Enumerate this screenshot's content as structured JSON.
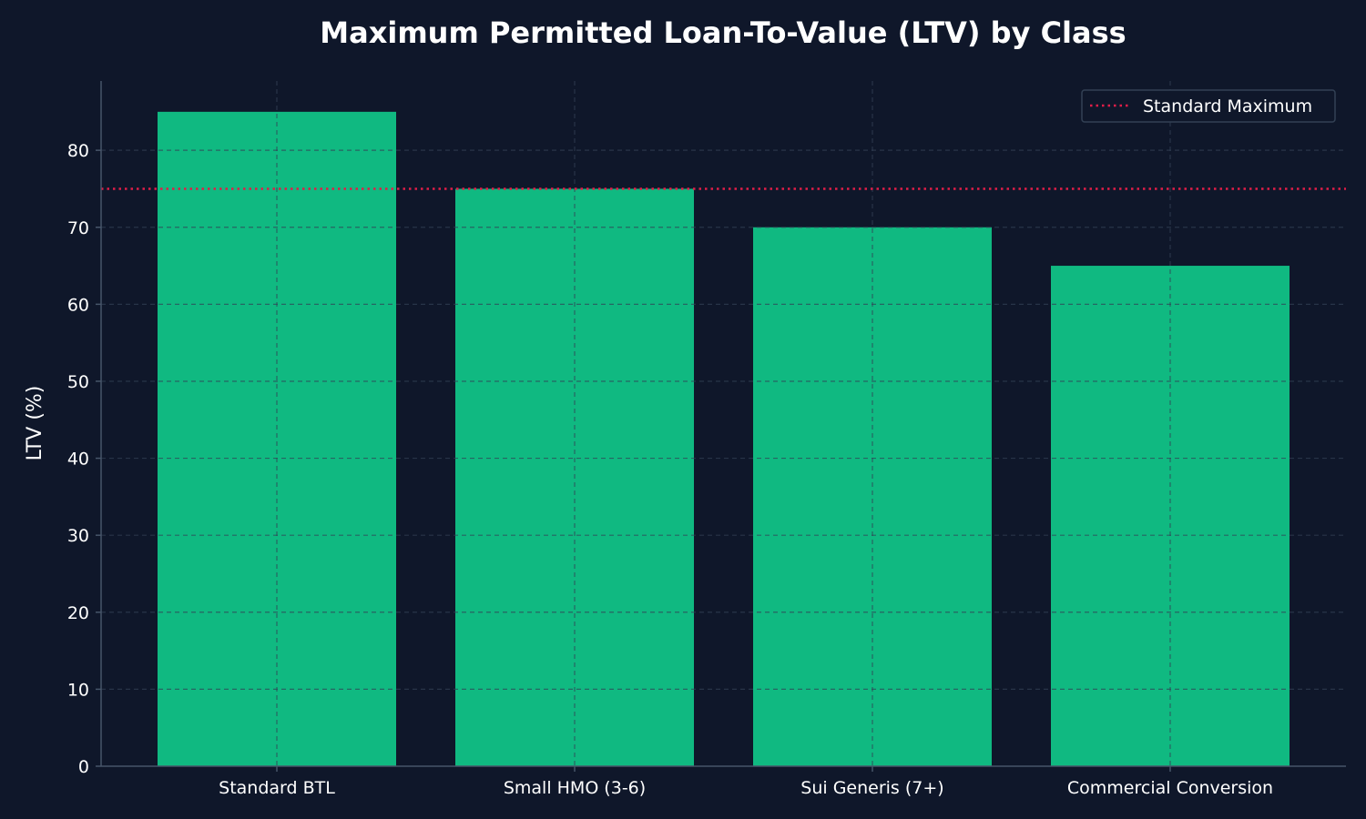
{
  "chart_data": {
    "type": "bar",
    "title": "Maximum Permitted Loan-To-Value (LTV) by Class",
    "xlabel": "",
    "ylabel": "LTV (%)",
    "categories": [
      "Standard BTL",
      "Small HMO (3-6)",
      "Sui Generis (7+)",
      "Commercial Conversion"
    ],
    "values": [
      85,
      75,
      70,
      65
    ],
    "ylim": [
      0,
      89
    ],
    "yticks": [
      0,
      10,
      20,
      30,
      40,
      50,
      60,
      70,
      80
    ],
    "reference_line": {
      "name": "Standard Maximum",
      "value": 75,
      "style": "dotted",
      "color": "#e11d48"
    },
    "legend": {
      "placement": "top-right",
      "entries": [
        "Standard Maximum"
      ]
    },
    "grid": true,
    "colors": {
      "background": "#0f172a",
      "bar": "#10b981",
      "grid": "#334155",
      "axis": "#475569",
      "text": "#ffffff"
    }
  }
}
